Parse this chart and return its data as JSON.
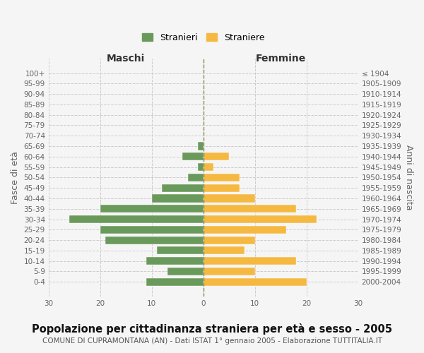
{
  "age_groups": [
    "100+",
    "95-99",
    "90-94",
    "85-89",
    "80-84",
    "75-79",
    "70-74",
    "65-69",
    "60-64",
    "55-59",
    "50-54",
    "45-49",
    "40-44",
    "35-39",
    "30-34",
    "25-29",
    "20-24",
    "15-19",
    "10-14",
    "5-9",
    "0-4"
  ],
  "birth_years": [
    "≤ 1904",
    "1905-1909",
    "1910-1914",
    "1915-1919",
    "1920-1924",
    "1925-1929",
    "1930-1934",
    "1935-1939",
    "1940-1944",
    "1945-1949",
    "1950-1954",
    "1955-1959",
    "1960-1964",
    "1965-1969",
    "1970-1974",
    "1975-1979",
    "1980-1984",
    "1985-1989",
    "1990-1994",
    "1995-1999",
    "2000-2004"
  ],
  "males": [
    0,
    0,
    0,
    0,
    0,
    0,
    0,
    1,
    4,
    1,
    3,
    8,
    10,
    20,
    26,
    20,
    19,
    9,
    11,
    7,
    11
  ],
  "females": [
    0,
    0,
    0,
    0,
    0,
    0,
    0,
    0,
    5,
    2,
    7,
    7,
    10,
    18,
    22,
    16,
    10,
    8,
    18,
    10,
    20
  ],
  "male_color": "#6a9a5b",
  "female_color": "#f5b942",
  "background_color": "#f5f5f5",
  "grid_color": "#cccccc",
  "title": "Popolazione per cittadinanza straniera per età e sesso - 2005",
  "subtitle": "COMUNE DI CUPRAMONTANA (AN) - Dati ISTAT 1° gennaio 2005 - Elaborazione TUTTITALIA.IT",
  "xlabel_left": "Maschi",
  "xlabel_right": "Femmine",
  "ylabel_left": "Fasce di età",
  "ylabel_right": "Anni di nascita",
  "legend_males": "Stranieri",
  "legend_females": "Straniere",
  "xlim": 30,
  "title_fontsize": 10.5,
  "subtitle_fontsize": 7.5,
  "tick_fontsize": 7.5,
  "label_fontsize": 9
}
